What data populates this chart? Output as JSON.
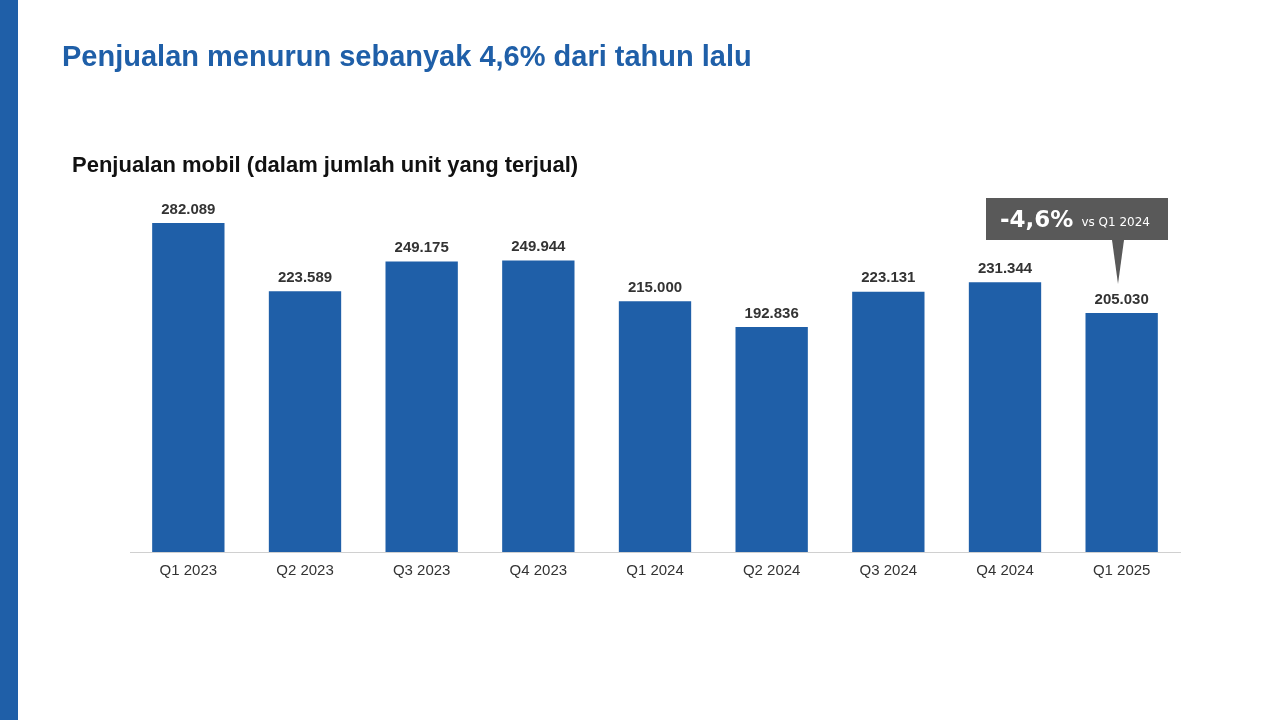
{
  "chart_data": {
    "type": "bar",
    "title": "Penjualan menurun sebanyak 4,6% dari tahun lalu",
    "subtitle": "Penjualan mobil (dalam jumlah unit yang terjual)",
    "categories": [
      "Q1 2023",
      "Q2 2023",
      "Q3 2023",
      "Q4 2023",
      "Q1 2024",
      "Q2 2024",
      "Q3 2024",
      "Q4 2024",
      "Q1 2025"
    ],
    "values": [
      282089,
      223589,
      249175,
      249944,
      215000,
      192836,
      223131,
      231344,
      205030
    ],
    "value_labels": [
      "282.089",
      "223.589",
      "249.175",
      "249.944",
      "215.000",
      "192.836",
      "223.131",
      "231.344",
      "205.030"
    ],
    "color": "#1f5fa8",
    "annotations": [
      "-4,6% vs Q1 2024"
    ],
    "grid": false,
    "legend": false
  }
}
